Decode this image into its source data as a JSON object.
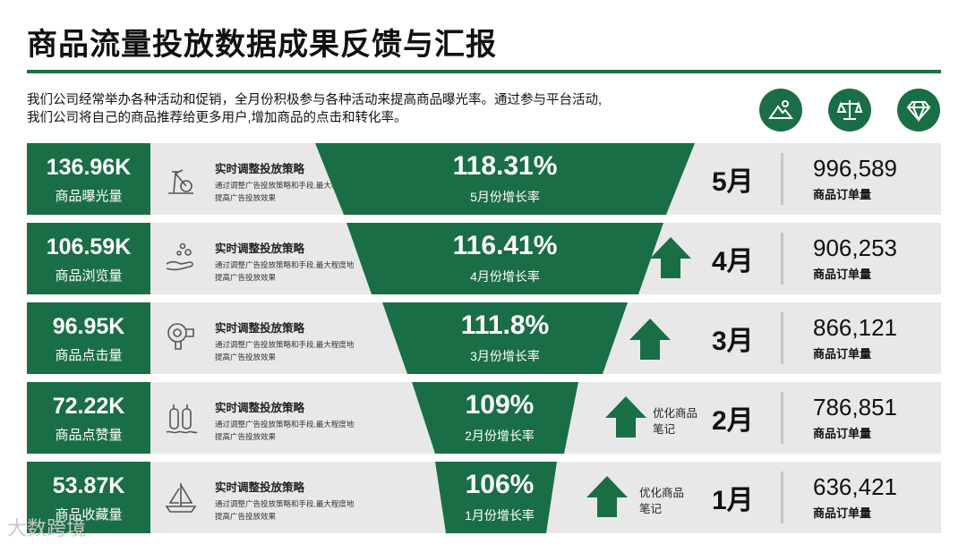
{
  "title": "商品流量投放数据成果反馈与汇报",
  "description": "我们公司经常举办各种活动和促销，全月份积极参与各种活动来提高商品曝光率。通过参与平台活动,我们公司将自己的商品推荐给更多用户,增加商品的点击和转化率。",
  "top_icons": [
    "mountain-image-icon",
    "balance-scale-icon",
    "diamond-icon"
  ],
  "colors": {
    "accent": "#1a6e46",
    "row_bg": "#e8e8e8"
  },
  "rows": [
    {
      "metric_value": "136.96K",
      "metric_label": "商品曝光量",
      "icon": "exercise-bike-icon",
      "strategy_title": "实时调整投放策略",
      "strategy_desc": "通过调整广告投放策略和手段,最大程度地提高广告投放效果",
      "growth_value": "118.31%",
      "growth_label": "5月份增长率",
      "arrow": false,
      "note": "",
      "month": "5月",
      "orders_value": "996,589",
      "orders_label": "商品订单量"
    },
    {
      "metric_value": "106.59K",
      "metric_label": "商品浏览量",
      "icon": "hand-bubbles-icon",
      "strategy_title": "实时调整投放策略",
      "strategy_desc": "通过调整广告投放策略和手段,最大程度地提高广告投放效果",
      "growth_value": "116.41%",
      "growth_label": "4月份增长率",
      "arrow": true,
      "note": "",
      "month": "4月",
      "orders_value": "906,253",
      "orders_label": "商品订单量"
    },
    {
      "metric_value": "96.95K",
      "metric_label": "商品点击量",
      "icon": "hairdryer-icon",
      "strategy_title": "实时调整投放策略",
      "strategy_desc": "通过调整广告投放策略和手段,最大程度地提高广告投放效果",
      "growth_value": "111.8%",
      "growth_label": "3月份增长率",
      "arrow": true,
      "note": "",
      "month": "3月",
      "orders_value": "866,121",
      "orders_label": "商品订单量"
    },
    {
      "metric_value": "72.22K",
      "metric_label": "商品点赞量",
      "icon": "oxygen-tanks-icon",
      "strategy_title": "实时调整投放策略",
      "strategy_desc": "通过调整广告投放策略和手段,最大程度地提高广告投放效果",
      "growth_value": "109%",
      "growth_label": "2月份增长率",
      "arrow": true,
      "note": "优化商品笔记",
      "month": "2月",
      "orders_value": "786,851",
      "orders_label": "商品订单量"
    },
    {
      "metric_value": "53.87K",
      "metric_label": "商品收藏量",
      "icon": "sailboat-icon",
      "strategy_title": "实时调整投放策略",
      "strategy_desc": "通过调整广告投放策略和手段,最大程度地提高广告投放效果",
      "growth_value": "106%",
      "growth_label": "1月份增长率",
      "arrow": true,
      "note": "优化商品笔记",
      "month": "1月",
      "orders_value": "636,421",
      "orders_label": "商品订单量"
    }
  ],
  "watermark": "大数跨境"
}
